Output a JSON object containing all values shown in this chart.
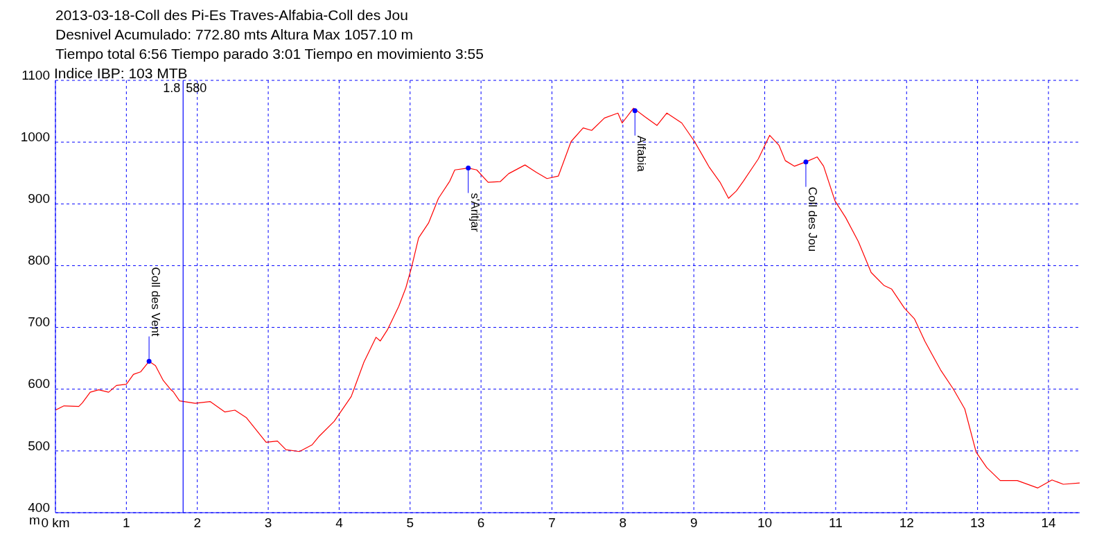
{
  "chart_data": {
    "type": "line",
    "title": "2013-03-18-Coll des Pi-Es Traves-Alfabia-Coll des Jou",
    "subtitle": "Desnivel Acumulado: 772.80 mts  Altura Max 1057.10 m",
    "annotations": [
      "Tiempo total 6:56 Tiempo parado 3:01 Tiempo en movimiento 3:55",
      "Indice IBP: 103 MTB",
      {
        "text": "580",
        "x": 1.8
      },
      {
        "text": "Coll des Vent",
        "x": 1.32,
        "y": 645
      },
      {
        "text": "s'Aritjar",
        "x": 5.82,
        "y": 958
      },
      {
        "text": "Alfabia",
        "x": 8.17,
        "y": 1051
      },
      {
        "text": "Coll des Jou",
        "x": 10.58,
        "y": 968
      }
    ],
    "ylabel": "m",
    "x": [
      0,
      0.12,
      0.33,
      0.38,
      0.49,
      0.61,
      0.75,
      0.86,
      1.0,
      1.1,
      1.2,
      1.32,
      1.41,
      1.52,
      1.62,
      1.66,
      1.75,
      1.97,
      2.18,
      2.39,
      2.53,
      2.69,
      2.97,
      3.13,
      3.25,
      3.44,
      3.62,
      3.72,
      3.93,
      4.17,
      4.35,
      4.52,
      4.58,
      4.68,
      4.84,
      4.94,
      5.02,
      5.12,
      5.26,
      5.4,
      5.56,
      5.63,
      5.82,
      5.94,
      6.1,
      6.27,
      6.39,
      6.62,
      6.78,
      6.93,
      7.09,
      7.27,
      7.44,
      7.56,
      7.74,
      7.93,
      7.99,
      8.15,
      8.31,
      8.48,
      8.62,
      8.83,
      9.01,
      9.22,
      9.37,
      9.49,
      9.6,
      9.7,
      9.91,
      10.07,
      10.2,
      10.29,
      10.42,
      10.58,
      10.74,
      10.83,
      10.99,
      11.14,
      11.32,
      11.5,
      11.68,
      11.79,
      11.97,
      12.11,
      12.26,
      12.48,
      12.66,
      12.82,
      12.98,
      13.13,
      13.32,
      13.56,
      13.85,
      14.05,
      14.21,
      14.44
    ],
    "series": [
      {
        "color": "#ff0000",
        "values": [
          566,
          573,
          572,
          578,
          595,
          599,
          595,
          606,
          608,
          624,
          628,
          645,
          638,
          614,
          600,
          596,
          581,
          577,
          580,
          563,
          566,
          554,
          514,
          516,
          502,
          499,
          510,
          524,
          548,
          588,
          644,
          684,
          678,
          696,
          734,
          764,
          797,
          845,
          869,
          909,
          937,
          955,
          958,
          955,
          935,
          936,
          949,
          963,
          951,
          941,
          945,
          1001,
          1023,
          1019,
          1039,
          1047,
          1031,
          1055,
          1041,
          1027,
          1047,
          1031,
          1001,
          959,
          935,
          909,
          921,
          937,
          973,
          1011,
          995,
          970,
          961,
          968,
          976,
          961,
          905,
          878,
          839,
          789,
          768,
          762,
          731,
          714,
          677,
          631,
          600,
          568,
          498,
          473,
          452,
          452,
          440,
          453,
          446,
          448
        ]
      }
    ],
    "xlim": [
      0,
      14.44
    ],
    "xticks": [
      {
        "value": 0,
        "label": "0 km"
      },
      1,
      2,
      3,
      4,
      5,
      6,
      7,
      8,
      9,
      10,
      11,
      12,
      13,
      14
    ],
    "ylim": [
      400,
      1100
    ],
    "yticks": [
      400,
      500,
      600,
      700,
      800,
      900,
      1000,
      1100
    ],
    "grid": true,
    "line_style": "solid",
    "marker": "none",
    "ref_lines": [
      {
        "axis": "x",
        "value": 1.8,
        "label": "1.8",
        "color": "#0000ff"
      }
    ]
  }
}
